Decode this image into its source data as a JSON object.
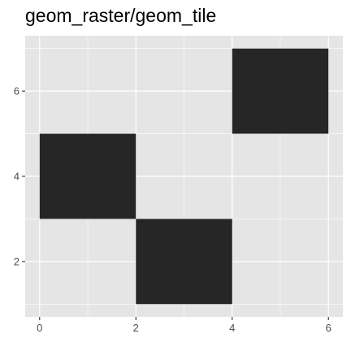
{
  "chart_data": {
    "type": "heatmap",
    "title": "geom_raster/geom_tile",
    "xlabel": "",
    "ylabel": "",
    "xlim": [
      -0.3,
      6.3
    ],
    "ylim": [
      0.7,
      7.3
    ],
    "x_ticks": [
      0,
      2,
      4,
      6
    ],
    "y_ticks": [
      2,
      4,
      6
    ],
    "x_tick_labels": [
      "0",
      "2",
      "4",
      "6"
    ],
    "y_tick_labels": [
      "2",
      "4",
      "6"
    ],
    "grid": true,
    "panel_background": "#e5e5e5",
    "grid_color": "#ffffff",
    "tile_fill": "#262626",
    "tick_label_color": "#4d4d4d",
    "tiles": [
      {
        "x": 1,
        "y": 4,
        "width": 2,
        "height": 2
      },
      {
        "x": 3,
        "y": 2,
        "width": 2,
        "height": 2
      },
      {
        "x": 5,
        "y": 6,
        "width": 2,
        "height": 2
      }
    ]
  }
}
